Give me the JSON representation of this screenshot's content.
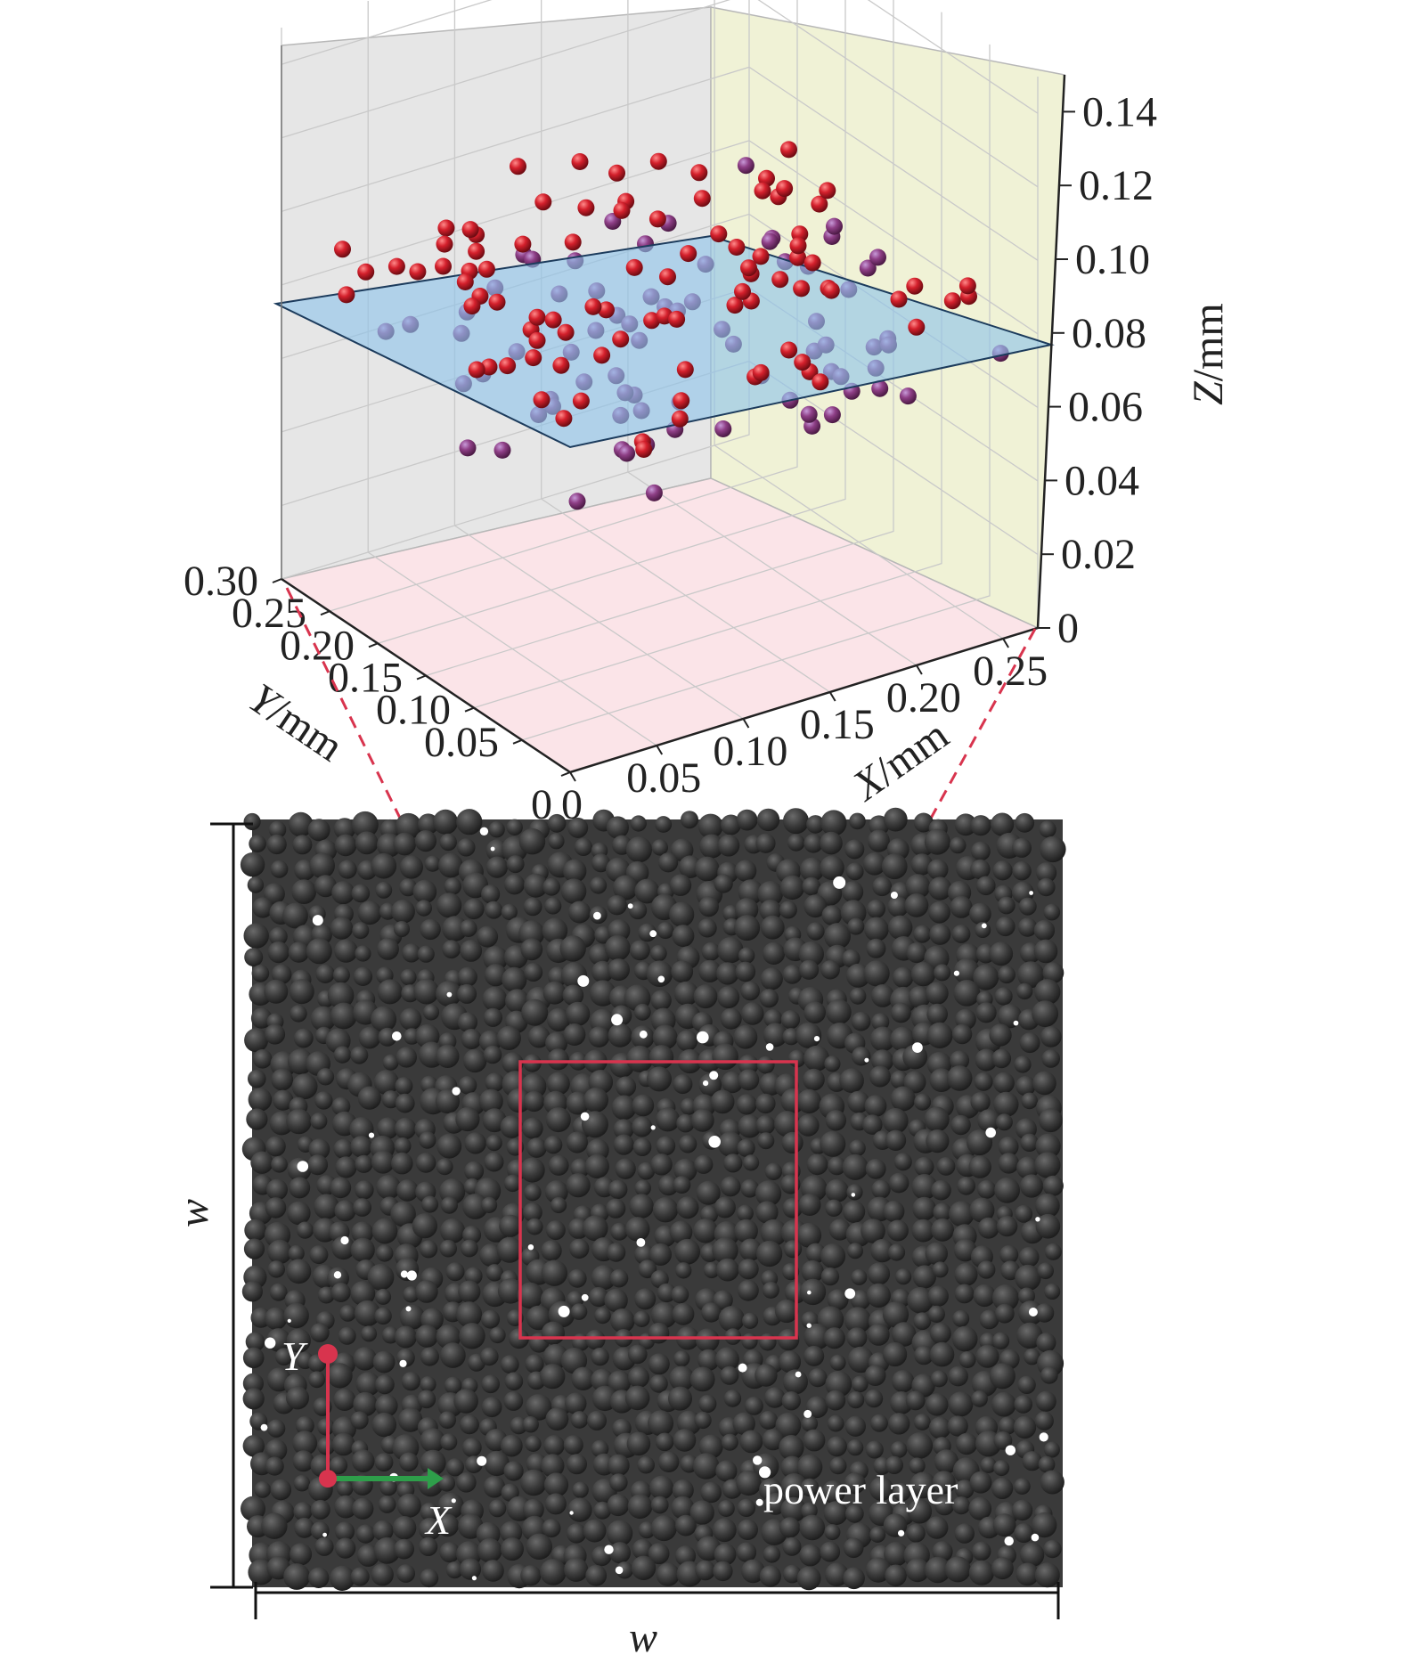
{
  "chart_data": {
    "type": "scatter3d",
    "axes": {
      "x": {
        "label_var": "X",
        "label_unit": "/mm",
        "ticks": [
          "0",
          "0.05",
          "0.10",
          "0.15",
          "0.20",
          "0.25"
        ],
        "range": [
          0,
          0.25
        ]
      },
      "y": {
        "label_var": "Y",
        "label_unit": "/mm",
        "ticks": [
          "0",
          "0.05",
          "0.10",
          "0.15",
          "0.20",
          "0.25",
          "0.30"
        ],
        "range": [
          0,
          0.3
        ]
      },
      "z": {
        "label_var": "Z",
        "label_unit": "/mm",
        "ticks": [
          "0",
          "0.02",
          "0.04",
          "0.06",
          "0.08",
          "0.10",
          "0.12",
          "0.14"
        ],
        "range": [
          0,
          0.15
        ]
      }
    },
    "plane_z": 0.08,
    "point_color": "#c81e2c",
    "plane_color": "#8ec3ea",
    "n_particles": 168,
    "z_spread": [
      0.06,
      0.1
    ],
    "grid": true
  },
  "powder_image": {
    "annotation": "power layer",
    "dimension_label_width": "w",
    "dimension_label_height": "w",
    "axis_x_label": "X",
    "axis_y_label": "Y",
    "highlight_color": "#d8344e",
    "bed_color": "#3a3a3a"
  }
}
